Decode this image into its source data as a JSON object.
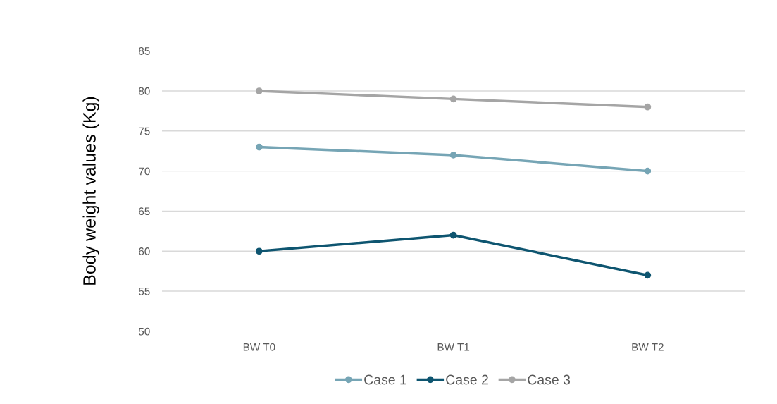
{
  "chart_data": {
    "type": "line",
    "ylabel": "Body weight values (Kg)",
    "categories": [
      "BW T0",
      "BW T1",
      "BW T2"
    ],
    "series": [
      {
        "name": "Case 1",
        "color": "#76a5b5",
        "values": [
          73,
          72,
          70
        ]
      },
      {
        "name": "Case 2",
        "color": "#0e5570",
        "values": [
          60,
          62,
          57
        ]
      },
      {
        "name": "Case 3",
        "color": "#a5a5a5",
        "values": [
          80,
          79,
          78
        ]
      }
    ],
    "ylim": [
      50,
      85
    ],
    "yticks": [
      50,
      55,
      60,
      65,
      70,
      75,
      80,
      85
    ],
    "grid": "y",
    "legend": "bottom",
    "marker": "circle",
    "line_style": "solid"
  }
}
